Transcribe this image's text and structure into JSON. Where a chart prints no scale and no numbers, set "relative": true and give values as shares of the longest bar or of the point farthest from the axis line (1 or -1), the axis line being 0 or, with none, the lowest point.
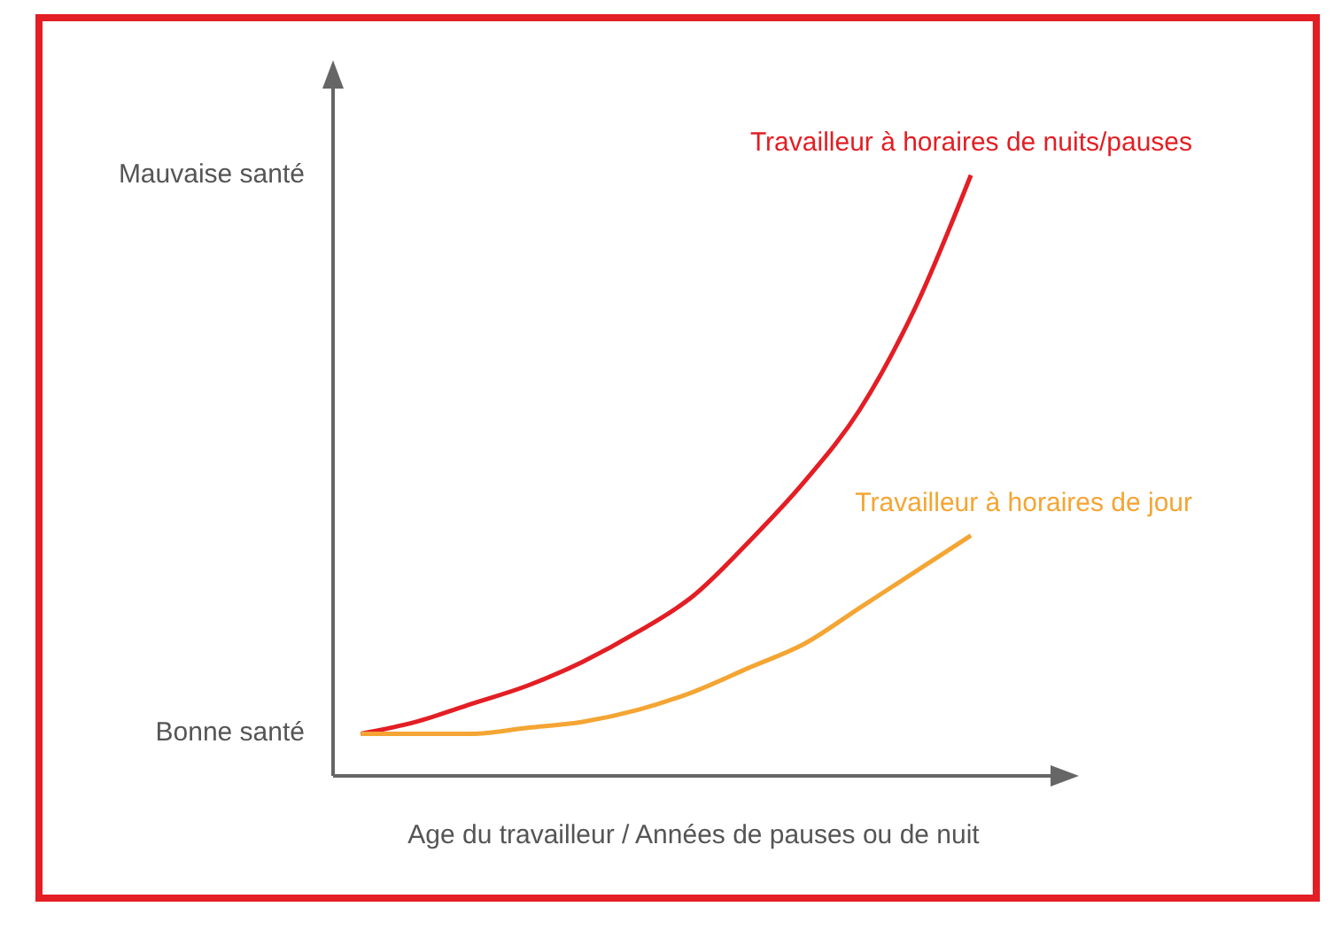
{
  "chart_data": {
    "type": "line",
    "relative": true,
    "xlabel": "Age du travailleur / Années de pauses ou de nuit",
    "annotations": [
      "Mauvaise santé",
      "Bonne santé"
    ],
    "categories": [
      null,
      null,
      null,
      null,
      null,
      null,
      null,
      null,
      null,
      null,
      null,
      null
    ],
    "series": [
      {
        "name": "Travailleur à horaires de nuits/pauses",
        "color": "#e31e24",
        "values": [
          0.07,
          0.09,
          0.12,
          0.15,
          0.19,
          0.24,
          0.3,
          0.39,
          0.49,
          0.61,
          0.78,
          1
        ]
      },
      {
        "name": "Travailleur à horaires de jour",
        "color": "#f4a533",
        "values": [
          0.07,
          0.07,
          0.07,
          0.08,
          0.09,
          0.11,
          0.14,
          0.18,
          0.22,
          0.28,
          0.34,
          0.4
        ]
      }
    ],
    "legend": false,
    "grid": false,
    "marker": "none",
    "line_style": "solid"
  }
}
